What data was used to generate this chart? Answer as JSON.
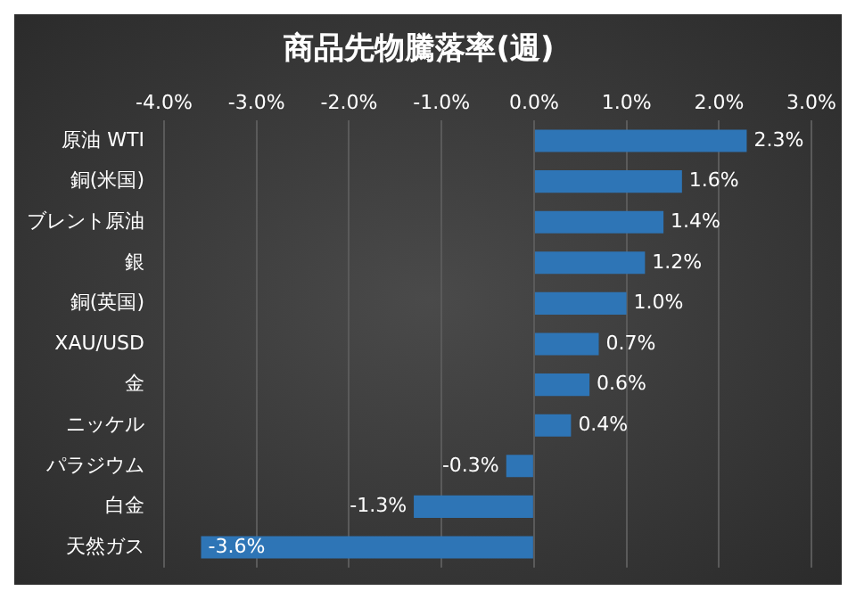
{
  "chart_data": {
    "type": "bar",
    "orientation": "horizontal",
    "title": "商品先物騰落率(週)",
    "categories": [
      "原油 WTI",
      "銅(米国)",
      "ブレント原油",
      "銀",
      "銅(英国)",
      "XAU/USD",
      "金",
      "ニッケル",
      "パラジウム",
      "白金",
      "天然ガス"
    ],
    "values": [
      2.3,
      1.6,
      1.4,
      1.2,
      1.0,
      0.7,
      0.6,
      0.4,
      -0.3,
      -1.3,
      -3.6
    ],
    "value_labels": [
      "2.3%",
      "1.6%",
      "1.4%",
      "1.2%",
      "1.0%",
      "0.7%",
      "0.6%",
      "0.4%",
      "-0.3%",
      "-1.3%",
      "-3.6%"
    ],
    "color": "#2e75b6",
    "xlim": [
      -4,
      3
    ],
    "xticks": [
      {
        "value": -4,
        "label": "-4.0%"
      },
      {
        "value": -3,
        "label": "-3.0%"
      },
      {
        "value": -2,
        "label": "-2.0%"
      },
      {
        "value": -1,
        "label": "-1.0%"
      },
      {
        "value": 0,
        "label": "0.0%"
      },
      {
        "value": 1,
        "label": "1.0%"
      },
      {
        "value": 2,
        "label": "2.0%"
      },
      {
        "value": 3,
        "label": "3.0%"
      }
    ],
    "grid": "x",
    "legend": false
  }
}
